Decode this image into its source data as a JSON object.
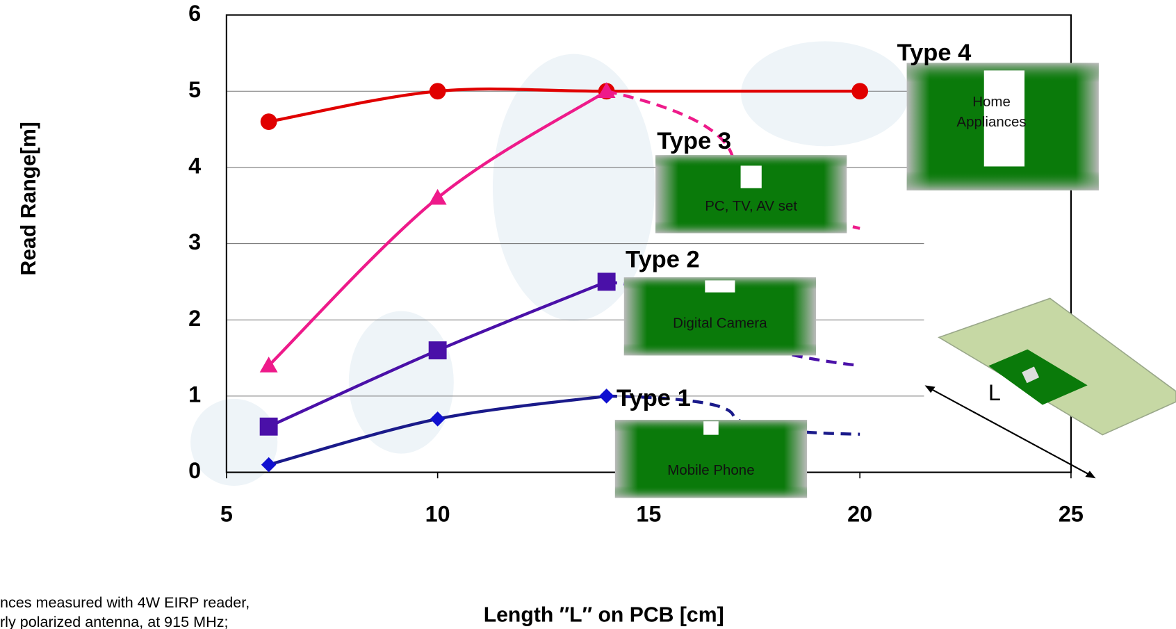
{
  "chart_data": {
    "type": "line",
    "x_label": "Length ″L″ on PCB [cm]",
    "y_label": "Read Range[m]",
    "xlim": [
      5,
      25
    ],
    "xticks": [
      5,
      10,
      15,
      20,
      25
    ],
    "ylim": [
      0,
      6
    ],
    "yticks": [
      0,
      1,
      2,
      3,
      4,
      5,
      6
    ],
    "grid": true,
    "series": [
      {
        "name": "Type 4",
        "color": "#e00000",
        "marker": "circle",
        "x": [
          6,
          10,
          14,
          20
        ],
        "values": [
          4.6,
          5,
          5,
          5
        ],
        "projection": null
      },
      {
        "name": "Type 3",
        "color": "#ee1a8a",
        "marker": "triangle",
        "x": [
          6,
          10,
          14
        ],
        "values": [
          1.4,
          3.6,
          5
        ],
        "projection": {
          "x": 20,
          "value": 3.2
        }
      },
      {
        "name": "Type 2",
        "color": "#4a10a8",
        "marker": "square",
        "x": [
          6,
          10,
          14
        ],
        "values": [
          0.6,
          1.6,
          2.5
        ],
        "projection": {
          "x": 20,
          "value": 1.4
        }
      },
      {
        "name": "Type 1",
        "color": "#1a1a8a",
        "marker": "diamond",
        "marker_color": "#1010d0",
        "x": [
          6,
          10,
          14
        ],
        "values": [
          0.1,
          0.7,
          1
        ],
        "projection": {
          "x": 20,
          "value": 0.5
        }
      }
    ],
    "insets": [
      {
        "label": "Type 1",
        "caption": "Mobile Phone"
      },
      {
        "label": "Type 2",
        "caption": "Digital Camera"
      },
      {
        "label": "Type 3",
        "caption": "PC, TV, AV set"
      },
      {
        "label": "Type 4",
        "caption": "Home Appliances"
      }
    ],
    "dimension_label": "L",
    "footnote": [
      "nces measured with 4W EIRP reader,",
      "rly polarized antenna, at 915 MHz;"
    ]
  }
}
